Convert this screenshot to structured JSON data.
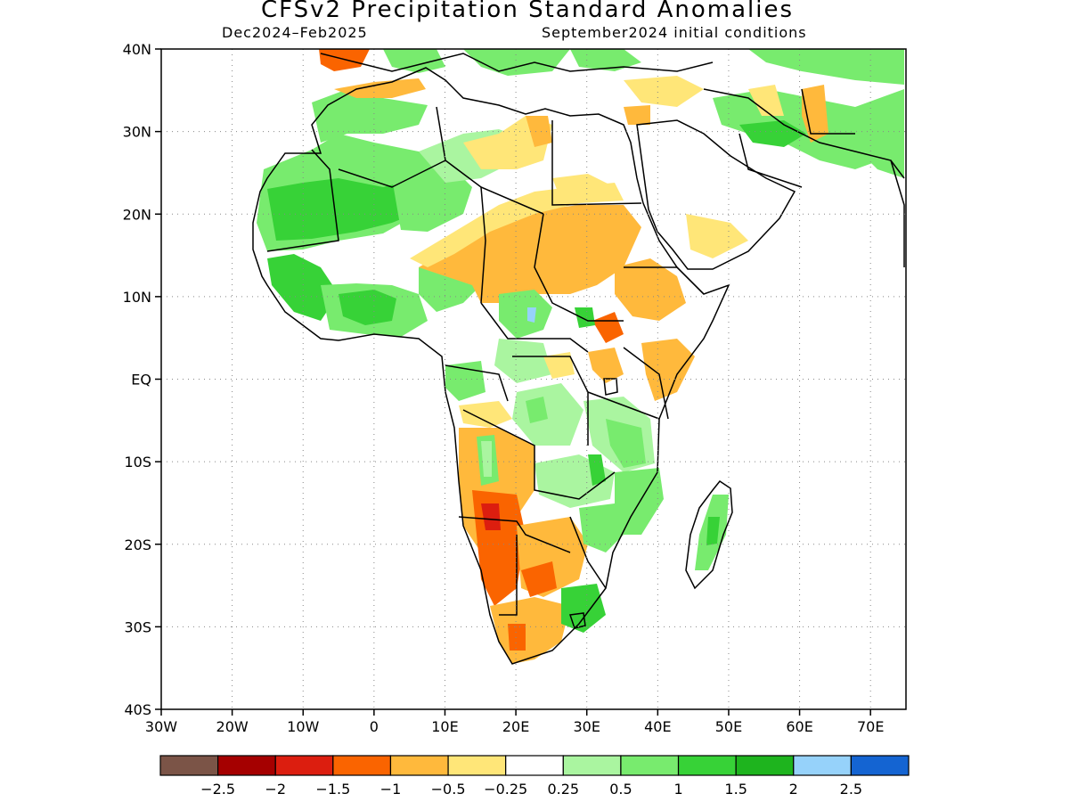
{
  "title": "CFSv2 Precipitation Standard Anomalies",
  "subtitle_left": "Dec2024–Feb2025",
  "subtitle_right": "September2024 initial conditions",
  "lat_labels": [
    "40N",
    "30N",
    "20N",
    "10N",
    "EQ",
    "10S",
    "20S",
    "30S",
    "40S"
  ],
  "lon_labels": [
    "30W",
    "20W",
    "10W",
    "0",
    "10E",
    "20E",
    "30E",
    "40E",
    "50E",
    "60E",
    "70E"
  ],
  "colorbar": {
    "colors": [
      "#7b5447",
      "#a50000",
      "#dc1e0f",
      "#fa6400",
      "#ffb93c",
      "#ffe678",
      "#ffffff",
      "#aaf5a0",
      "#78eb6e",
      "#37d237",
      "#1eb41e",
      "#96d2fa",
      "#1464d2"
    ],
    "labels": [
      "−2.5",
      "−2",
      "−1.5",
      "−1",
      "−0.5",
      "−0.25",
      "0.25",
      "0.5",
      "1",
      "1.5",
      "2",
      "2.5"
    ]
  },
  "map_extent": {
    "lon_min": -30,
    "lon_max": 75,
    "lat_min": -40,
    "lat_max": 40
  }
}
